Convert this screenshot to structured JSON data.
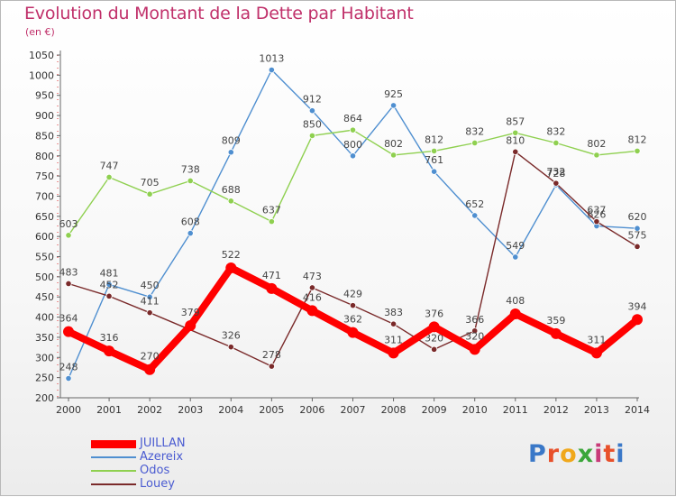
{
  "title": "Evolution du Montant de la Dette par Habitant",
  "unit": "(en €)",
  "logo": {
    "text": "Proxiti",
    "colors": [
      "#3a78c8",
      "#e8502a",
      "#f0a81c",
      "#3aa63a",
      "#c83a78",
      "#e8502a",
      "#3a78c8"
    ]
  },
  "chart_data": {
    "type": "line",
    "title": "Evolution du Montant de la Dette par Habitant",
    "subtitle": "(en €)",
    "x": [
      "2000",
      "2001",
      "2002",
      "2003",
      "2004",
      "2005",
      "2006",
      "2007",
      "2008",
      "2009",
      "2010",
      "2011",
      "2012",
      "2013",
      "2014"
    ],
    "ylim": [
      200,
      1050
    ],
    "yticks": [
      200,
      250,
      300,
      350,
      400,
      450,
      500,
      550,
      600,
      650,
      700,
      750,
      800,
      850,
      900,
      950,
      1000,
      1050
    ],
    "grid": false,
    "legend_position": "bottom-left",
    "series": [
      {
        "name": "JUILLAN",
        "color": "#ff0000",
        "values": [
          364,
          316,
          270,
          379,
          522,
          471,
          416,
          362,
          311,
          376,
          320,
          408,
          359,
          311,
          394
        ]
      },
      {
        "name": "Azereix",
        "color": "#4f8fd0",
        "values": [
          248,
          481,
          450,
          608,
          809,
          1013,
          912,
          800,
          925,
          761,
          652,
          549,
          728,
          626,
          620
        ]
      },
      {
        "name": "Odos",
        "color": "#8fd050",
        "values": [
          603,
          747,
          705,
          738,
          688,
          637,
          850,
          864,
          802,
          812,
          832,
          857,
          832,
          802,
          812
        ]
      },
      {
        "name": "Louey",
        "color": "#7a2a2a",
        "values": [
          483,
          452,
          411,
          null,
          326,
          278,
          473,
          429,
          383,
          320,
          366,
          810,
          732,
          637,
          575
        ]
      }
    ]
  }
}
